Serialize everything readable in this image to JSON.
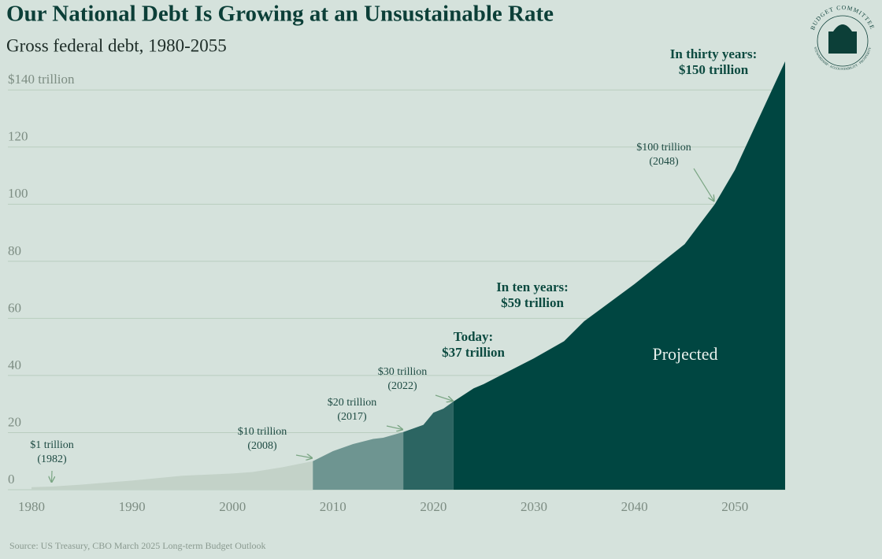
{
  "chart_data": {
    "type": "area",
    "title": "Our National Debt Is Growing at an Unsustainable Rate",
    "subtitle": "Gross federal debt, 1980-2055",
    "source": "Source: US Treasury, CBO March 2025 Long-term Budget Outlook",
    "logo_top": "BUDGET COMMITTEE",
    "logo_bottom": "STEWARDSHIP · ACCOUNTABILITY · PROSPERITY",
    "region_label": "Projected",
    "x": [
      1980,
      1982,
      1985,
      1990,
      1995,
      2000,
      2002,
      2005,
      2008,
      2010,
      2012,
      2014,
      2015,
      2017,
      2019,
      2020,
      2021,
      2022,
      2024,
      2025,
      2030,
      2033,
      2035,
      2040,
      2045,
      2048,
      2050,
      2055
    ],
    "series": [
      {
        "color": "#c3d2c8",
        "values": [
          0.9,
          1.1,
          1.8,
          3.2,
          4.9,
          5.7,
          6.2,
          7.9,
          10,
          null,
          null,
          null,
          null,
          null,
          null,
          null,
          null,
          null,
          null,
          null,
          null,
          null,
          null,
          null,
          null,
          null,
          null,
          null
        ]
      },
      {
        "color": "#6e9591",
        "values": [
          null,
          null,
          null,
          null,
          null,
          null,
          null,
          null,
          10,
          13.5,
          16,
          17.8,
          18.2,
          20.2,
          null,
          null,
          null,
          null,
          null,
          null,
          null,
          null,
          null,
          null,
          null,
          null,
          null,
          null
        ]
      },
      {
        "color": "#2c6562",
        "values": [
          null,
          null,
          null,
          null,
          null,
          null,
          null,
          null,
          null,
          null,
          null,
          null,
          null,
          20.2,
          22.7,
          27,
          28.4,
          30.9,
          null,
          null,
          null,
          null,
          null,
          null,
          null,
          null,
          null,
          null
        ]
      },
      {
        "color": "#004641",
        "values": [
          null,
          null,
          null,
          null,
          null,
          null,
          null,
          null,
          null,
          null,
          null,
          null,
          null,
          null,
          null,
          null,
          null,
          30.9,
          35.5,
          37,
          46,
          52,
          59,
          72,
          86,
          100,
          112,
          150
        ]
      }
    ],
    "xlim": [
      1980,
      2055
    ],
    "xticks": [
      1980,
      1990,
      2000,
      2010,
      2020,
      2030,
      2040,
      2050
    ],
    "ylim": [
      0,
      150
    ],
    "yticks": [
      0,
      20,
      40,
      60,
      80,
      100,
      120,
      {
        "value": 140,
        "label": "$140 trillion"
      }
    ],
    "grid": true,
    "annotations": [
      {
        "text": "$1 trillion",
        "sub": "(1982)",
        "x": 1982,
        "y": 1
      },
      {
        "text": "$10 trillion",
        "sub": "(2008)",
        "x": 2008,
        "y": 10
      },
      {
        "text": "$20 trillion",
        "sub": "(2017)",
        "x": 2017,
        "y": 20
      },
      {
        "text": "$30 trillion",
        "sub": "(2022)",
        "x": 2022,
        "y": 30
      },
      {
        "text": "$100 trillion",
        "sub": "(2048)",
        "x": 2048,
        "y": 100
      }
    ],
    "callouts": [
      {
        "text": "Today:",
        "sub": "$37 trillion"
      },
      {
        "text": "In ten years:",
        "sub": "$59 trillion"
      },
      {
        "text": "In thirty years:",
        "sub": "$150 trillion"
      }
    ]
  }
}
